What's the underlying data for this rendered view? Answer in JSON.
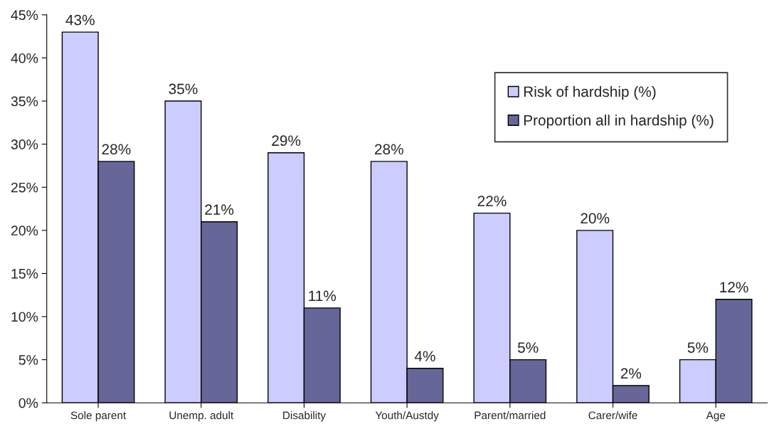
{
  "chart_data": {
    "type": "bar",
    "categories": [
      "Sole parent",
      "Unemp. adult",
      "Disability",
      "Youth/Austdy",
      "Parent/married",
      "Carer/wife",
      "Age"
    ],
    "series": [
      {
        "name": "Risk of hardship (%)",
        "color": "#ccccff",
        "values": [
          43,
          35,
          29,
          28,
          22,
          20,
          5
        ],
        "value_labels": [
          "43%",
          "35%",
          "29%",
          "28%",
          "22%",
          "20%",
          "5%"
        ]
      },
      {
        "name": "Proportion all in hardship (%)",
        "color": "#666699",
        "values": [
          28,
          21,
          11,
          4,
          5,
          2,
          12
        ],
        "value_labels": [
          "28%",
          "21%",
          "11%",
          "4%",
          "5%",
          "2%",
          "12%"
        ]
      }
    ],
    "ylim": [
      0,
      45
    ],
    "yticks": [
      {
        "value": 0,
        "label": "0%"
      },
      {
        "value": 5,
        "label": "5%"
      },
      {
        "value": 10,
        "label": "10%"
      },
      {
        "value": 15,
        "label": "15%"
      },
      {
        "value": 20,
        "label": "20%"
      },
      {
        "value": 25,
        "label": "25%"
      },
      {
        "value": 30,
        "label": "30%"
      },
      {
        "value": 35,
        "label": "35%"
      },
      {
        "value": 40,
        "label": "40%"
      },
      {
        "value": 45,
        "label": "45%"
      }
    ],
    "grid": false,
    "legend": "top right"
  }
}
